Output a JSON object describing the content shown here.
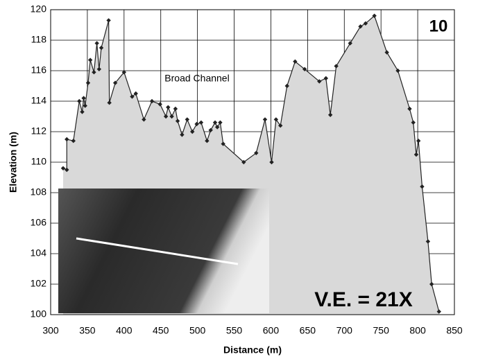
{
  "chart_data": {
    "type": "area",
    "xlabel": "Distance (m)",
    "ylabel": "Elevation (m)",
    "x": [
      317,
      322,
      322,
      331,
      339,
      343,
      345,
      347,
      351,
      354,
      359,
      363,
      366,
      369,
      379,
      380,
      388,
      400,
      411,
      416,
      427,
      438,
      449,
      457,
      460,
      465,
      470,
      473,
      479,
      486,
      493,
      499,
      505,
      513,
      518,
      524,
      527,
      531,
      535,
      563,
      580,
      592,
      601,
      607,
      613,
      622,
      633,
      646,
      666,
      675,
      681,
      689,
      708,
      722,
      729,
      741,
      758,
      773,
      789,
      794,
      798,
      801,
      806,
      814,
      819,
      829
    ],
    "values": [
      109.6,
      109.5,
      111.5,
      111.4,
      114,
      113.3,
      114.2,
      113.7,
      115.2,
      116.7,
      115.9,
      117.8,
      116.1,
      117.5,
      119.3,
      113.9,
      115.2,
      115.9,
      114.3,
      114.5,
      112.8,
      114,
      113.8,
      113,
      113.6,
      113,
      113.5,
      112.7,
      111.8,
      112.8,
      112,
      112.5,
      112.6,
      111.4,
      112.1,
      112.6,
      112.3,
      112.6,
      111.2,
      110,
      110.6,
      112.8,
      110,
      112.8,
      112.4,
      115,
      116.6,
      116.1,
      115.3,
      115.5,
      113.1,
      116.3,
      117.8,
      118.9,
      119.1,
      119.6,
      117.2,
      116,
      113.5,
      112.6,
      110.5,
      111.4,
      108.4,
      104.8,
      102,
      100.2
    ],
    "color": "#222222",
    "fill": "#d9d9d9",
    "xlim": [
      300,
      850
    ],
    "xticks": [
      300,
      350,
      400,
      450,
      500,
      550,
      600,
      650,
      700,
      750,
      800,
      850
    ],
    "ylim": [
      100,
      120
    ],
    "yticks": [
      100,
      102,
      104,
      106,
      108,
      110,
      112,
      114,
      116,
      118,
      120
    ],
    "grid": true,
    "annotations": [
      "10",
      "Broad Channel",
      "V.E. = 21X"
    ]
  }
}
